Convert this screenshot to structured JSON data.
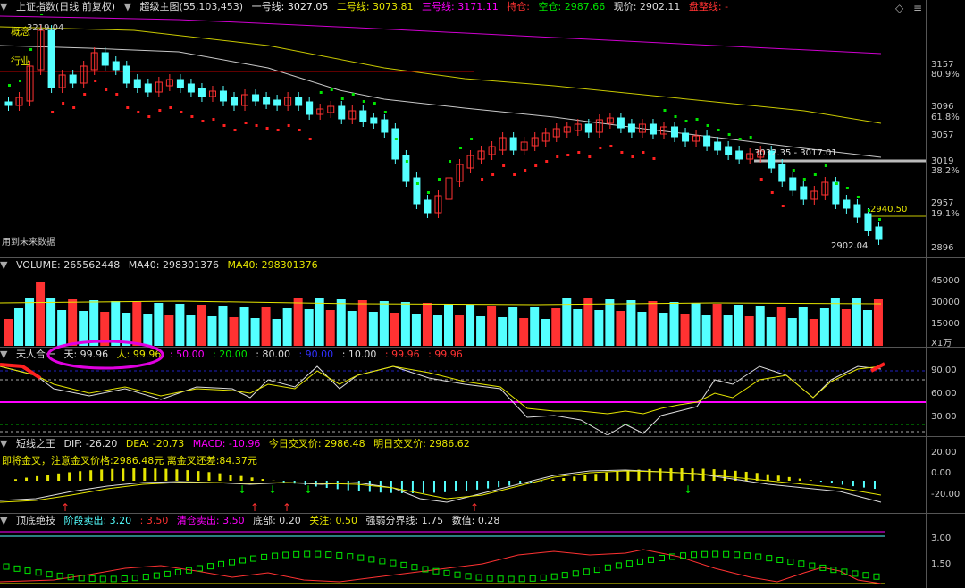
{
  "main": {
    "index_name": "上证指数(日线 前复权)",
    "chart_name": "超级主图(55,103,453)",
    "line1_label": "一号线:",
    "line1_value": "3027.05",
    "line2_label": "二号线:",
    "line2_value": "3073.81",
    "line3_label": "三号线:",
    "line3_value": "3171.11",
    "hold_label": "持仓:",
    "empty_label": "空仓:",
    "empty_value": "2987.66",
    "price_label": "现价:",
    "price_value": "2902.11",
    "adjust_label": "盘整线:",
    "concept_label": "概念",
    "industry_label": "行业",
    "high_label": "3219.04",
    "range_label": "3032.35 - 3017.01",
    "price_line_label": "2940.50",
    "low_label": "2902.04",
    "future_label": "用到未来数据",
    "yaxis": [
      "3157",
      "80.9%",
      "3096",
      "61.8%",
      "3057",
      "3019",
      "38.2%",
      "2957",
      "19.1%",
      "2896"
    ]
  },
  "volume": {
    "title": "VOLUME: 265562448",
    "ma40_a": "MA40: 298301376",
    "ma40_b": "MA40: 298301376",
    "yaxis": [
      "45000",
      "30000",
      "15000",
      "X1万"
    ]
  },
  "tian": {
    "title": "天人合一",
    "tian_label": "天: 99.96",
    "ren_label": "人: 99.96",
    "v1": ": 50.00",
    "v2": ": 20.00",
    "v3": ": 80.00",
    "v4": ": 90.00",
    "v5": ": 10.00",
    "v6": ": 99.96",
    "v7": ": 99.96",
    "yaxis": [
      "90.00",
      "60.00",
      "30.00"
    ]
  },
  "macd": {
    "title": "短线之王",
    "dif": "DIF: -26.20",
    "dea": "DEA: -20.73",
    "macd": "MACD: -10.96",
    "today_cross": "今日交叉价: 2986.48",
    "tomorrow_cross": "明日交叉价: 2986.62",
    "sub_line": "即将金叉，注意金叉价格:2986.48元  离金叉还差:84.37元",
    "yaxis": [
      "20.00",
      "0.00",
      "-20.00"
    ]
  },
  "bottom": {
    "title": "顶底绝技",
    "stage_sell": "阶段卖出: 3.20",
    "v350": ": 3.50",
    "clear_sell": "清仓卖出: 3.50",
    "bottom_v": "底部: 0.20",
    "focus_v": "关注: 0.50",
    "strong_weak": "强弱分界线: 1.75",
    "value_v": "数值: 0.28",
    "yaxis": [
      "3.00",
      "1.50"
    ]
  },
  "colors": {
    "up": "#ff3232",
    "down": "#54ffff",
    "yellow": "#e6e600",
    "magenta": "#ff00ff",
    "green": "#00e600"
  }
}
